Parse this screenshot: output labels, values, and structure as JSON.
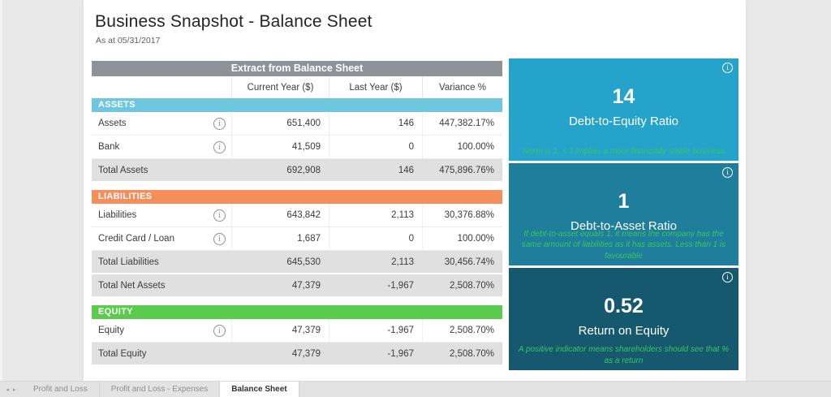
{
  "page": {
    "title": "Business Snapshot - Balance Sheet",
    "subtitle": "As at 05/31/2017"
  },
  "table": {
    "title": "Extract from Balance Sheet",
    "columns": [
      "",
      "Current Year ($)",
      "Last Year ($)",
      "Variance %"
    ],
    "sections": [
      {
        "name": "ASSETS",
        "color": "#6EC6DF",
        "rows": [
          {
            "label": "Assets",
            "info": true,
            "current": "651,400",
            "last": "146",
            "variance": "447,382.17%",
            "total": false
          },
          {
            "label": "Bank",
            "info": true,
            "current": "41,509",
            "last": "0",
            "variance": "100.00%",
            "total": false
          },
          {
            "label": "Total Assets",
            "info": false,
            "current": "692,908",
            "last": "146",
            "variance": "475,896.76%",
            "total": true
          }
        ]
      },
      {
        "name": "LIABILITIES",
        "color": "#F68E5B",
        "rows": [
          {
            "label": "Liabilities",
            "info": true,
            "current": "643,842",
            "last": "2,113",
            "variance": "30,376.88%",
            "total": false
          },
          {
            "label": "Credit Card / Loan",
            "info": true,
            "current": "1,687",
            "last": "0",
            "variance": "100.00%",
            "total": false
          },
          {
            "label": "Total Liabilities",
            "info": false,
            "current": "645,530",
            "last": "2,113",
            "variance": "30,456.74%",
            "total": true
          },
          {
            "label": "Total Net Assets",
            "info": false,
            "current": "47,379",
            "last": "-1,967",
            "variance": "2,508.70%",
            "total": true
          }
        ]
      },
      {
        "name": "EQUITY",
        "color": "#5BCB4E",
        "rows": [
          {
            "label": "Equity",
            "info": true,
            "current": "47,379",
            "last": "-1,967",
            "variance": "2,508.70%",
            "total": false
          },
          {
            "label": "Total Equity",
            "info": false,
            "current": "47,379",
            "last": "-1,967",
            "variance": "2,508.70%",
            "total": true
          }
        ]
      }
    ]
  },
  "kpi_cards": [
    {
      "value": "14",
      "label": "Debt-to-Equity Ratio",
      "note": "Norm is 1, < 1 implies a more financially stable business",
      "bg": "#25A3CB"
    },
    {
      "value": "1",
      "label": "Debt-to-Asset Ratio",
      "note": "If debt-to-asset equals 1, it means the company has the same amount of liabilities as it has assets. Less than 1 is favourable",
      "bg": "#1E7E9C"
    },
    {
      "value": "0.52",
      "label": "Return on Equity",
      "note": "A positive indicator means shareholders should see that % as a return",
      "bg": "#16596F"
    }
  ],
  "note_color": "#3CC45F",
  "info_glyph": "i",
  "tabbar": {
    "arrow_left": "◂",
    "arrow_right": "▸",
    "tabs": [
      {
        "label": "Profit and Loss",
        "active": false
      },
      {
        "label": "Profit and Loss - Expenses",
        "active": false
      },
      {
        "label": "Balance Sheet",
        "active": true
      }
    ]
  }
}
